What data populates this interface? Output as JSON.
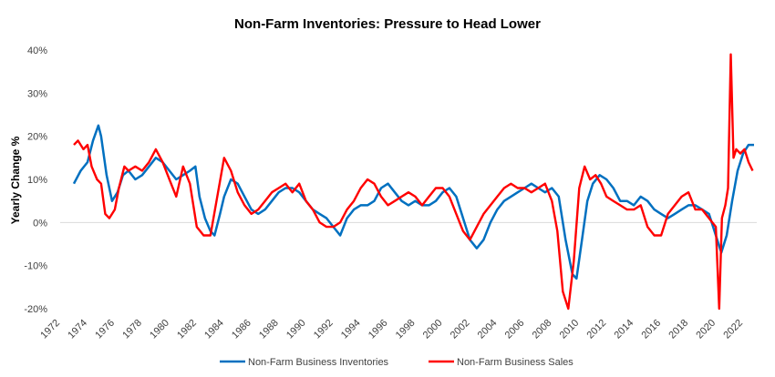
{
  "chart_data": {
    "type": "line",
    "title": "Non-Farm Inventories: Pressure to Head Lower",
    "xlabel": "",
    "ylabel": "Yearly Change %",
    "xlim": [
      1972,
      2023
    ],
    "ylim": [
      -20,
      40
    ],
    "y_ticks": [
      "40%",
      "30%",
      "20%",
      "10%",
      "0%",
      "-10%",
      "-20%"
    ],
    "y_tick_values": [
      40,
      30,
      20,
      10,
      0,
      -10,
      -20
    ],
    "x_ticks": [
      "1972",
      "1974",
      "1976",
      "1978",
      "1980",
      "1982",
      "1984",
      "1986",
      "1988",
      "1990",
      "1992",
      "1994",
      "1996",
      "1998",
      "2000",
      "2002",
      "2004",
      "2006",
      "2008",
      "2010",
      "2012",
      "2014",
      "2016",
      "2018",
      "2020",
      "2022"
    ],
    "x_tick_values": [
      1972,
      1974,
      1976,
      1978,
      1980,
      1982,
      1984,
      1986,
      1988,
      1990,
      1992,
      1994,
      1996,
      1998,
      2000,
      2002,
      2004,
      2006,
      2008,
      2010,
      2012,
      2014,
      2016,
      2018,
      2020,
      2022
    ],
    "grid": false,
    "legend_position": "bottom",
    "series": [
      {
        "name": "Non-Farm Business Inventories",
        "color": "#0070C0",
        "x": [
          1973.0,
          1973.5,
          1974.0,
          1974.4,
          1974.8,
          1975.0,
          1975.4,
          1975.8,
          1976.2,
          1976.6,
          1977.0,
          1977.5,
          1978.0,
          1978.5,
          1979.0,
          1979.5,
          1980.0,
          1980.5,
          1981.0,
          1981.5,
          1981.9,
          1982.2,
          1982.6,
          1983.0,
          1983.3,
          1983.7,
          1984.0,
          1984.5,
          1985.0,
          1985.5,
          1986.0,
          1986.5,
          1987.0,
          1987.5,
          1988.0,
          1988.5,
          1989.0,
          1989.5,
          1990.0,
          1990.5,
          1991.0,
          1991.5,
          1992.0,
          1992.5,
          1993.0,
          1993.5,
          1994.0,
          1994.5,
          1995.0,
          1995.5,
          1996.0,
          1996.5,
          1997.0,
          1997.5,
          1998.0,
          1998.5,
          1999.0,
          1999.5,
          2000.0,
          2000.5,
          2001.0,
          2001.5,
          2002.0,
          2002.5,
          2003.0,
          2003.5,
          2004.0,
          2004.5,
          2005.0,
          2005.5,
          2006.0,
          2006.5,
          2007.0,
          2007.5,
          2008.0,
          2008.5,
          2009.0,
          2009.5,
          2009.8,
          2010.2,
          2010.6,
          2011.0,
          2011.5,
          2012.0,
          2012.5,
          2013.0,
          2013.5,
          2014.0,
          2014.5,
          2015.0,
          2015.5,
          2016.0,
          2016.5,
          2017.0,
          2017.5,
          2018.0,
          2018.5,
          2019.0,
          2019.5,
          2020.0,
          2020.4,
          2020.8,
          2021.2,
          2021.6,
          2022.0,
          2022.4,
          2022.8
        ],
        "y": [
          9,
          12,
          14,
          19,
          22.5,
          20,
          11,
          5,
          7,
          11,
          12,
          10,
          11,
          13,
          15,
          14,
          12,
          10,
          11,
          12,
          13,
          6,
          1,
          -2,
          -3,
          2,
          6,
          10,
          9,
          6,
          3,
          2,
          3,
          5,
          7,
          8,
          8,
          7,
          5,
          3,
          2,
          1,
          -1,
          -3,
          1,
          3,
          4,
          4,
          5,
          8,
          9,
          7,
          5,
          4,
          5,
          4,
          4,
          5,
          7,
          8,
          6,
          1,
          -4,
          -6,
          -4,
          0,
          3,
          5,
          6,
          7,
          8,
          9,
          8,
          7,
          8,
          6,
          -4,
          -12,
          -13,
          -4,
          5,
          9,
          11,
          10,
          8,
          5,
          5,
          4,
          6,
          5,
          3,
          2,
          1,
          2,
          3,
          4,
          4,
          3,
          2,
          -3,
          -7,
          -3,
          5,
          12,
          16,
          18,
          18
        ]
      },
      {
        "name": "Non-Farm Business Sales",
        "color": "#FF0000",
        "x": [
          1973.0,
          1973.3,
          1973.7,
          1974.0,
          1974.3,
          1974.7,
          1975.0,
          1975.3,
          1975.6,
          1976.0,
          1976.3,
          1976.7,
          1977.0,
          1977.5,
          1978.0,
          1978.5,
          1979.0,
          1979.5,
          1980.0,
          1980.5,
          1981.0,
          1981.5,
          1982.0,
          1982.5,
          1983.0,
          1983.5,
          1984.0,
          1984.5,
          1985.0,
          1985.5,
          1986.0,
          1986.5,
          1987.0,
          1987.5,
          1988.0,
          1988.5,
          1989.0,
          1989.5,
          1990.0,
          1990.5,
          1991.0,
          1991.5,
          1992.0,
          1992.5,
          1993.0,
          1993.5,
          1994.0,
          1994.5,
          1995.0,
          1995.5,
          1996.0,
          1996.5,
          1997.0,
          1997.5,
          1998.0,
          1998.5,
          1999.0,
          1999.5,
          2000.0,
          2000.5,
          2001.0,
          2001.5,
          2002.0,
          2002.5,
          2003.0,
          2003.5,
          2004.0,
          2004.5,
          2005.0,
          2005.5,
          2006.0,
          2006.5,
          2007.0,
          2007.5,
          2008.0,
          2008.4,
          2008.8,
          2009.2,
          2009.6,
          2010.0,
          2010.4,
          2010.8,
          2011.2,
          2011.6,
          2012.0,
          2012.5,
          2013.0,
          2013.5,
          2014.0,
          2014.5,
          2015.0,
          2015.5,
          2016.0,
          2016.5,
          2017.0,
          2017.5,
          2018.0,
          2018.5,
          2019.0,
          2019.5,
          2020.0,
          2020.25,
          2020.45,
          2020.7,
          2020.9,
          2021.1,
          2021.3,
          2021.5,
          2021.8,
          2022.1,
          2022.4,
          2022.7
        ],
        "y": [
          18,
          19,
          17,
          18,
          13,
          10,
          9,
          2,
          1,
          3,
          8,
          13,
          12,
          13,
          12,
          14,
          17,
          14,
          10,
          6,
          13,
          9,
          -1,
          -3,
          -3,
          6,
          15,
          12,
          7,
          4,
          2,
          3,
          5,
          7,
          8,
          9,
          7,
          9,
          5,
          3,
          0,
          -1,
          -1,
          0,
          3,
          5,
          8,
          10,
          9,
          6,
          4,
          5,
          6,
          7,
          6,
          4,
          6,
          8,
          8,
          6,
          2,
          -2,
          -4,
          -1,
          2,
          4,
          6,
          8,
          9,
          8,
          8,
          7,
          8,
          9,
          5,
          -2,
          -16,
          -20,
          -9,
          8,
          13,
          10,
          11,
          9,
          6,
          5,
          4,
          3,
          3,
          4,
          -1,
          -3,
          -3,
          2,
          4,
          6,
          7,
          3,
          3,
          1,
          -1,
          -20,
          1,
          4,
          8,
          39,
          15,
          17,
          16,
          17,
          14,
          12
        ]
      }
    ]
  }
}
